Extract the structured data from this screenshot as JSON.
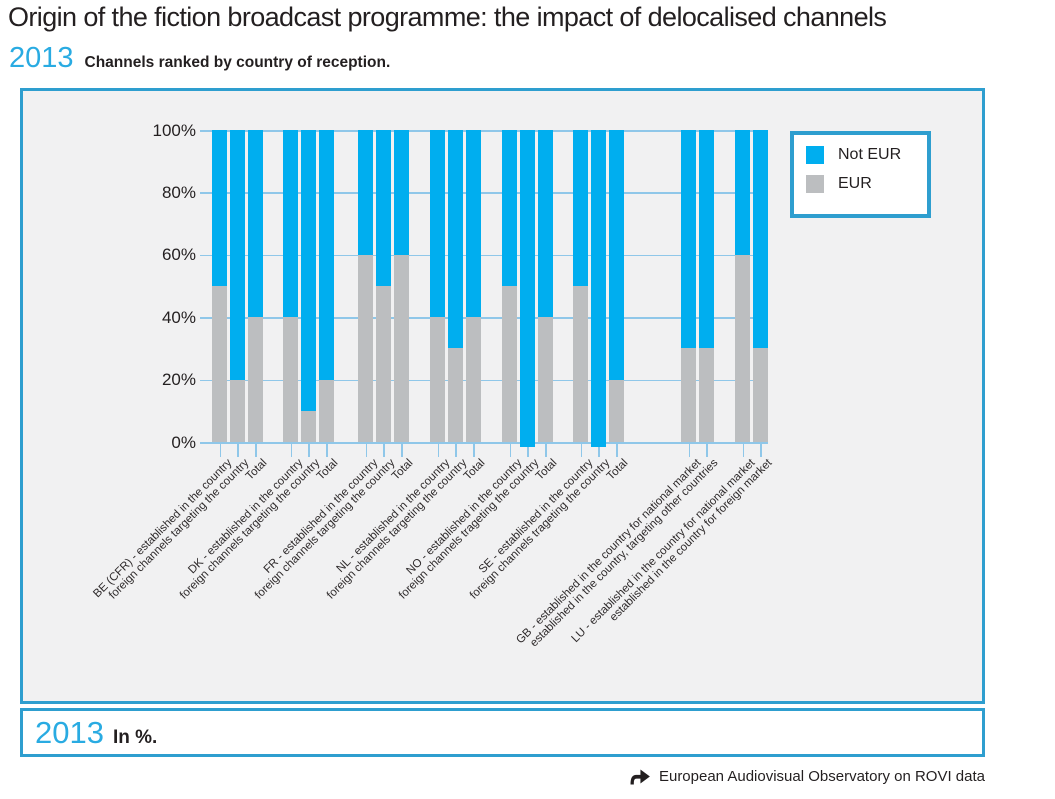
{
  "header": {
    "title": "Origin of the fiction broadcast programme: the impact of delocalised channels",
    "year": "2013",
    "subtitle": "Channels ranked by country of reception."
  },
  "legend": {
    "items": [
      {
        "label": "Not EUR",
        "color": "#00AEEF"
      },
      {
        "label": "EUR",
        "color": "#BCBEC0"
      }
    ]
  },
  "footer": {
    "year": "2013",
    "note": "In %."
  },
  "source": {
    "label": "European Audiovisual Observatory on ROVI data",
    "icon": "curved-right-arrow-icon"
  },
  "colors": {
    "accent_border": "#2E9ECF",
    "bar_not_eur": "#00AEEF",
    "bar_eur": "#BCBEC0",
    "gridline": "#8FC7E9",
    "year_blue": "#29ABE2",
    "panel_background": "#F1F1F2",
    "text": "#231F20"
  },
  "chart_data": {
    "type": "bar",
    "stacked": true,
    "unit": "%",
    "ylim": [
      0,
      100
    ],
    "y_ticks": [
      "100%",
      "80%",
      "60%",
      "40%",
      "20%",
      "0%"
    ],
    "grid": true,
    "legend_position": "top-right",
    "legend": [
      "Not EUR",
      "EUR"
    ],
    "groups": [
      {
        "id": "BE",
        "bars": [
          {
            "label": "BE (CFR) - established in the country",
            "eur": 50,
            "not_eur": 50
          },
          {
            "label": "foreign channels targeting the country",
            "eur": 20,
            "not_eur": 80
          },
          {
            "label": "Total",
            "eur": 40,
            "not_eur": 60
          }
        ]
      },
      {
        "id": "DK",
        "bars": [
          {
            "label": "DK - established in the country",
            "eur": 40,
            "not_eur": 60
          },
          {
            "label": "foreign channels targeting the country",
            "eur": 10,
            "not_eur": 90
          },
          {
            "label": "Total",
            "eur": 20,
            "not_eur": 80
          }
        ]
      },
      {
        "id": "FR",
        "bars": [
          {
            "label": "FR - established in the country",
            "eur": 60,
            "not_eur": 40
          },
          {
            "label": "foreign channels targeting the country",
            "eur": 50,
            "not_eur": 50
          },
          {
            "label": "Total",
            "eur": 60,
            "not_eur": 40
          }
        ]
      },
      {
        "id": "NL",
        "bars": [
          {
            "label": "NL - established in the country",
            "eur": 40,
            "not_eur": 60
          },
          {
            "label": "foreign channels targeting the country",
            "eur": 30,
            "not_eur": 70
          },
          {
            "label": "Total",
            "eur": 40,
            "not_eur": 60
          }
        ]
      },
      {
        "id": "NO",
        "bars": [
          {
            "label": "NO - established in the country",
            "eur": 50,
            "not_eur": 50
          },
          {
            "label": "foreign channels trageting the country",
            "eur": 0,
            "not_eur": 100
          },
          {
            "label": "Total",
            "eur": 40,
            "not_eur": 60
          }
        ]
      },
      {
        "id": "SE",
        "bars": [
          {
            "label": "SE - established in the country",
            "eur": 50,
            "not_eur": 50
          },
          {
            "label": "foreign channels trageting the country",
            "eur": 0,
            "not_eur": 100
          },
          {
            "label": "Total",
            "eur": 20,
            "not_eur": 80
          }
        ]
      },
      {
        "id": "GB",
        "bars": [
          {
            "label": "GB - established in the country for national market",
            "eur": 30,
            "not_eur": 70
          },
          {
            "label": "established in the country, targeting other countries",
            "eur": 30,
            "not_eur": 70
          }
        ]
      },
      {
        "id": "LU",
        "bars": [
          {
            "label": "LU - established in the country for national market",
            "eur": 60,
            "not_eur": 40
          },
          {
            "label": "established in the country for foreign market",
            "eur": 30,
            "not_eur": 70
          }
        ]
      }
    ]
  }
}
